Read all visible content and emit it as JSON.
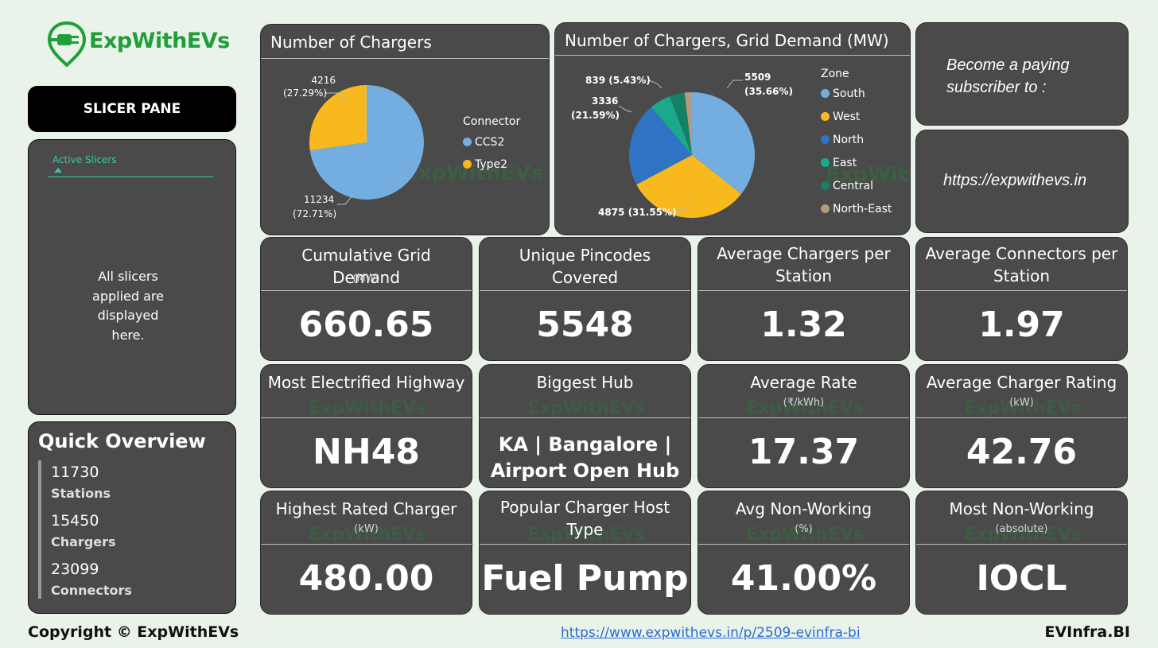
{
  "brand": {
    "name": "ExpWithEVs",
    "colors": {
      "green": "#1f9e3a",
      "card": "#4a4a4a",
      "bg": "#e9f3e9"
    }
  },
  "slicer": {
    "button_label": "SLICER PANE",
    "active_tab": "Active Slicers",
    "message": "All slicers\napplied are\ndisplayed\nhere."
  },
  "overview": {
    "title": "Quick Overview",
    "stats": [
      {
        "value": "11730",
        "label": "Stations"
      },
      {
        "value": "15450",
        "label": "Chargers"
      },
      {
        "value": "23099",
        "label": "Connectors"
      }
    ]
  },
  "footer": {
    "copyright": "Copyright © ExpWithEVs",
    "link": "https://www.expwithevs.in/p/2509-evinfra-bi",
    "brand": "EVInfra.BI"
  },
  "watermark": "ExpWithEVs",
  "chart_data": [
    {
      "type": "pie",
      "title": "Number of Chargers",
      "legend_title": "Connector",
      "categories": [
        "CCS2",
        "Type2"
      ],
      "values": [
        11234,
        4216
      ],
      "percents": [
        "72.71%",
        "27.29%"
      ],
      "colors": [
        "#74aee0",
        "#f7b91d"
      ],
      "labels": [
        "11234",
        "4216"
      ],
      "label_pcts": [
        "(72.71%)",
        "(27.29%)"
      ]
    },
    {
      "type": "pie",
      "title": "Number of Chargers, Grid Demand (MW)",
      "legend_title": "Zone",
      "categories": [
        "South",
        "West",
        "North",
        "East",
        "Central",
        "North-East"
      ],
      "values": [
        5509,
        4875,
        3336,
        839,
        602,
        289
      ],
      "colors": [
        "#74aee0",
        "#f7b91d",
        "#2f73c4",
        "#1aa98a",
        "#148066",
        "#b49a7e"
      ],
      "label_south": "5509",
      "label_south_pct": "(35.66%)",
      "label_west": "4875 (31.55%)",
      "label_north": "3336",
      "label_north_pct": "(21.59%)",
      "label_east": "839 (5.43%)"
    }
  ],
  "promo": {
    "line1": "Become a paying",
    "line2": "subscriber to :",
    "url": "https://expwithevs.in"
  },
  "kpis": [
    {
      "title": "Cumulative Grid Demand",
      "sub": "(MW)",
      "value": "660.65"
    },
    {
      "title": "Unique Pincodes Covered",
      "sub": "",
      "value": "5548"
    },
    {
      "title": "Average Chargers per Station",
      "sub": "",
      "value": "1.32"
    },
    {
      "title": "Average Connectors per Station",
      "sub": "",
      "value": "1.97"
    },
    {
      "title": "Most Electrified Highway",
      "sub": "",
      "value": "NH48"
    },
    {
      "title": "Biggest Hub",
      "sub": "",
      "value_line1": "KA | Bangalore |",
      "value_line2": "Airport Open Hub"
    },
    {
      "title": "Average Rate",
      "sub": "(₹/kWh)",
      "value": "17.37"
    },
    {
      "title": "Average Charger Rating",
      "sub": "(kW)",
      "value": "42.76"
    },
    {
      "title": "Highest Rated Charger",
      "sub": "(kW)",
      "value": "480.00"
    },
    {
      "title": "Popular Charger Host Type",
      "sub": "",
      "value": "Fuel Pump"
    },
    {
      "title": "Avg Non-Working",
      "sub": "(%)",
      "value": "41.00%"
    },
    {
      "title": "Most Non-Working",
      "sub": "(absolute)",
      "value": "IOCL"
    }
  ]
}
